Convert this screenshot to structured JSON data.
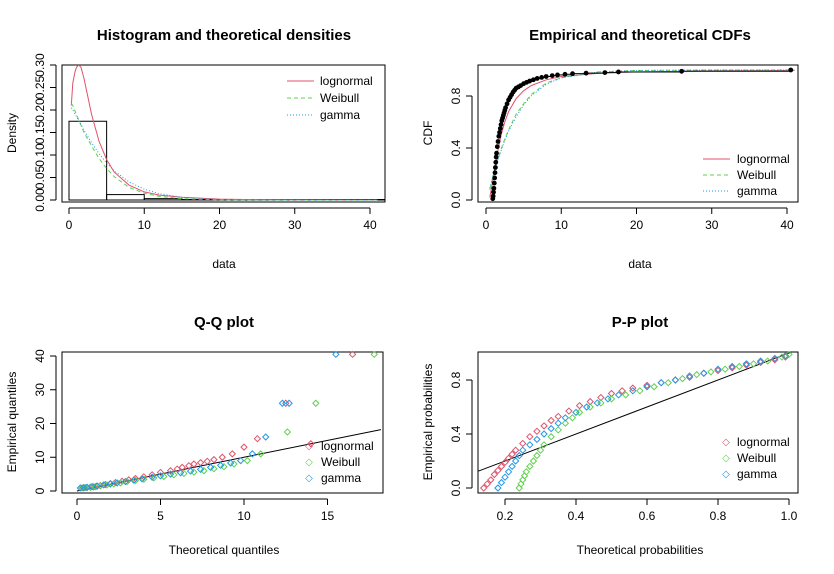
{
  "colors": {
    "lognormal": "#DF536B",
    "weibull": "#61D04F",
    "gamma": "#2297E6",
    "axis": "#000000"
  },
  "chart_data": [
    {
      "id": "density",
      "type": "line",
      "title": "Histogram and theoretical densities",
      "xlabel": "data",
      "ylabel": "Density",
      "xlim": [
        0,
        42
      ],
      "ylim": [
        0,
        0.32
      ],
      "xticks": [
        0,
        10,
        20,
        30,
        40
      ],
      "xtick_labels": [
        "0",
        "10",
        "20",
        "30",
        "40"
      ],
      "yticks": [
        0,
        0.05,
        0.1,
        0.15,
        0.2,
        0.25,
        0.3
      ],
      "ytick_labels": [
        "0.00",
        "0.05",
        "0.10",
        "0.15",
        "0.20",
        "0.25",
        "0.30"
      ],
      "histogram": {
        "bins": [
          [
            0,
            5
          ],
          [
            5,
            10
          ],
          [
            10,
            15
          ],
          [
            15,
            20
          ],
          [
            20,
            25
          ],
          [
            25,
            30
          ],
          [
            30,
            35
          ],
          [
            35,
            40
          ],
          [
            40,
            45
          ]
        ],
        "density": [
          0.175,
          0.012,
          0.003,
          0.001,
          0.0,
          0.001,
          0.0,
          0.0,
          0.001
        ]
      },
      "series": [
        {
          "name": "lognormal",
          "style": "solid",
          "x": [
            0.3,
            0.5,
            0.8,
            1.0,
            1.3,
            1.6,
            2.0,
            2.5,
            3.0,
            4.0,
            5.0,
            6.0,
            8.0,
            10.0,
            12.0,
            15.0,
            20.0,
            25.0,
            30.0,
            41.0
          ],
          "y": [
            0.21,
            0.26,
            0.285,
            0.295,
            0.3,
            0.295,
            0.27,
            0.23,
            0.19,
            0.13,
            0.09,
            0.062,
            0.033,
            0.018,
            0.011,
            0.006,
            0.002,
            0.001,
            0.0005,
            0.0
          ]
        },
        {
          "name": "Weibull",
          "style": "dashed",
          "x": [
            0.3,
            0.5,
            1.0,
            1.5,
            2.0,
            3.0,
            4.0,
            5.0,
            6.0,
            8.0,
            10.0,
            12.0,
            15.0,
            20.0,
            30.0,
            41.0
          ],
          "y": [
            0.215,
            0.21,
            0.19,
            0.17,
            0.15,
            0.12,
            0.092,
            0.07,
            0.052,
            0.028,
            0.015,
            0.008,
            0.003,
            0.0005,
            0.0,
            0.0
          ]
        },
        {
          "name": "gamma",
          "style": "dotted",
          "x": [
            0.3,
            0.5,
            1.0,
            1.5,
            2.0,
            3.0,
            4.0,
            5.0,
            6.0,
            8.0,
            10.0,
            12.0,
            15.0,
            20.0,
            30.0,
            41.0
          ],
          "y": [
            0.205,
            0.2,
            0.185,
            0.17,
            0.155,
            0.127,
            0.103,
            0.082,
            0.065,
            0.04,
            0.024,
            0.014,
            0.006,
            0.001,
            0.0,
            0.0
          ]
        }
      ],
      "legend": {
        "position": "top-right",
        "entries": [
          "lognormal",
          "Weibull",
          "gamma"
        ]
      }
    },
    {
      "id": "cdf",
      "type": "line",
      "title": "Empirical and theoretical CDFs",
      "xlabel": "data",
      "ylabel": "CDF",
      "xlim": [
        0,
        41
      ],
      "ylim": [
        0,
        1
      ],
      "xticks": [
        0,
        10,
        20,
        30,
        40
      ],
      "xtick_labels": [
        "0",
        "10",
        "20",
        "30",
        "40"
      ],
      "yticks": [
        0,
        0.4,
        0.8
      ],
      "ytick_labels": [
        "0.0",
        "0.4",
        "0.8"
      ],
      "empirical": {
        "x": [
          0.9,
          0.95,
          1.0,
          1.05,
          1.1,
          1.15,
          1.2,
          1.25,
          1.3,
          1.35,
          1.4,
          1.5,
          1.6,
          1.7,
          1.8,
          1.9,
          2.0,
          2.1,
          2.2,
          2.3,
          2.4,
          2.5,
          2.6,
          2.8,
          3.0,
          3.2,
          3.4,
          3.6,
          3.8,
          4.0,
          4.3,
          4.6,
          5.0,
          5.4,
          5.8,
          6.3,
          6.8,
          7.4,
          8.0,
          8.8,
          9.5,
          10.5,
          11.5,
          13.3,
          15.8,
          17.6,
          26.0,
          40.5
        ],
        "y": [
          0.01,
          0.03,
          0.06,
          0.09,
          0.13,
          0.17,
          0.21,
          0.25,
          0.29,
          0.33,
          0.36,
          0.41,
          0.45,
          0.49,
          0.52,
          0.55,
          0.58,
          0.61,
          0.63,
          0.65,
          0.67,
          0.69,
          0.71,
          0.74,
          0.77,
          0.79,
          0.81,
          0.83,
          0.845,
          0.86,
          0.87,
          0.88,
          0.895,
          0.905,
          0.915,
          0.925,
          0.935,
          0.943,
          0.95,
          0.957,
          0.962,
          0.967,
          0.972,
          0.976,
          0.98,
          0.985,
          0.99,
          1.0
        ]
      },
      "series": [
        {
          "name": "lognormal",
          "style": "solid",
          "x": [
            0.5,
            1.0,
            1.5,
            2.0,
            2.5,
            3.0,
            4.0,
            5.0,
            6.0,
            8.0,
            10.0,
            15.0,
            20.0,
            30.0,
            41.0
          ],
          "y": [
            0.02,
            0.18,
            0.36,
            0.5,
            0.6,
            0.68,
            0.78,
            0.84,
            0.88,
            0.925,
            0.95,
            0.975,
            0.985,
            0.993,
            0.996
          ]
        },
        {
          "name": "Weibull",
          "style": "dashed",
          "x": [
            0.5,
            1.0,
            1.5,
            2.0,
            2.5,
            3.0,
            4.0,
            5.0,
            6.0,
            8.0,
            10.0,
            15.0,
            20.0,
            30.0,
            41.0
          ],
          "y": [
            0.08,
            0.2,
            0.3,
            0.39,
            0.47,
            0.54,
            0.66,
            0.74,
            0.81,
            0.9,
            0.94,
            0.985,
            0.996,
            1.0,
            1.0
          ]
        },
        {
          "name": "gamma",
          "style": "dotted",
          "x": [
            0.5,
            1.0,
            1.5,
            2.0,
            2.5,
            3.0,
            4.0,
            5.0,
            6.0,
            8.0,
            10.0,
            15.0,
            20.0,
            30.0,
            41.0
          ],
          "y": [
            0.09,
            0.2,
            0.3,
            0.38,
            0.46,
            0.53,
            0.64,
            0.73,
            0.8,
            0.89,
            0.94,
            0.985,
            0.997,
            1.0,
            1.0
          ]
        }
      ],
      "legend": {
        "position": "bottom-right",
        "entries": [
          "lognormal",
          "Weibull",
          "gamma"
        ]
      }
    },
    {
      "id": "qq",
      "type": "scatter",
      "title": "Q-Q plot",
      "xlabel": "Theoretical quantiles",
      "ylabel": "Empirical quantiles",
      "xlim": [
        -0.5,
        18.2
      ],
      "ylim": [
        -0.5,
        41.5
      ],
      "xticks": [
        0,
        5,
        10,
        15
      ],
      "xtick_labels": [
        "0",
        "5",
        "10",
        "15"
      ],
      "yticks": [
        0,
        10,
        20,
        30,
        40
      ],
      "ytick_labels": [
        "0",
        "10",
        "20",
        "30",
        "40"
      ],
      "reference_line": [
        [
          0,
          0
        ],
        [
          18.2,
          18.2
        ]
      ],
      "series": [
        {
          "name": "lognormal",
          "x": [
            0.4,
            0.6,
            0.8,
            1.0,
            1.2,
            1.4,
            1.7,
            2.0,
            2.3,
            2.7,
            3.1,
            3.5,
            4.0,
            4.5,
            5.0,
            5.6,
            6.0,
            6.3,
            6.7,
            7.0,
            7.4,
            7.8,
            8.2,
            8.7,
            9.3,
            10.0,
            10.8,
            12.5,
            14.0,
            16.5
          ],
          "y": [
            0.9,
            1.0,
            1.1,
            1.2,
            1.4,
            1.6,
            1.9,
            2.2,
            2.5,
            2.9,
            3.3,
            3.7,
            4.2,
            4.8,
            5.5,
            6.0,
            6.5,
            7.0,
            7.5,
            8.0,
            8.4,
            8.8,
            9.3,
            10.0,
            11.0,
            13.0,
            15.5,
            26.0,
            14.0,
            40.5
          ]
        },
        {
          "name": "Weibull",
          "x": [
            0.3,
            0.5,
            0.8,
            1.1,
            1.4,
            1.8,
            2.2,
            2.6,
            3.0,
            3.5,
            4.0,
            4.6,
            5.2,
            5.8,
            6.4,
            7.0,
            7.6,
            8.2,
            8.8,
            9.4,
            10.2,
            11.0,
            12.6,
            14.3,
            17.8
          ],
          "y": [
            0.9,
            1.0,
            1.1,
            1.3,
            1.5,
            1.8,
            2.1,
            2.4,
            2.8,
            3.1,
            3.5,
            3.9,
            4.3,
            4.8,
            5.2,
            5.6,
            6.0,
            6.6,
            7.2,
            8.0,
            9.0,
            11.0,
            17.5,
            26.0,
            40.5
          ]
        },
        {
          "name": "gamma",
          "x": [
            0.2,
            0.4,
            0.6,
            0.9,
            1.2,
            1.6,
            2.0,
            2.4,
            2.9,
            3.4,
            3.9,
            4.5,
            5.0,
            5.6,
            6.2,
            6.8,
            7.4,
            8.0,
            8.6,
            9.2,
            9.8,
            10.5,
            11.3,
            12.3,
            12.7,
            15.5
          ],
          "y": [
            0.9,
            1.0,
            1.1,
            1.3,
            1.5,
            1.8,
            2.1,
            2.4,
            2.8,
            3.2,
            3.6,
            4.1,
            4.5,
            5.0,
            5.4,
            5.9,
            6.4,
            7.0,
            7.6,
            8.3,
            9.0,
            11.0,
            16.0,
            26.0,
            26.0,
            40.5
          ]
        }
      ],
      "legend": {
        "position": "bottom-right",
        "entries": [
          "lognormal",
          "Weibull",
          "gamma"
        ]
      }
    },
    {
      "id": "pp",
      "type": "scatter",
      "title": "P-P plot",
      "xlabel": "Theoretical probabilities",
      "ylabel": "Empirical probabilities",
      "xlim": [
        0.1,
        1.02
      ],
      "ylim": [
        -0.04,
        1.04
      ],
      "xticks": [
        0.2,
        0.4,
        0.6,
        0.8,
        1.0
      ],
      "xtick_labels": [
        "0.2",
        "0.4",
        "0.6",
        "0.8",
        "1.0"
      ],
      "yticks": [
        0,
        0.4,
        0.8
      ],
      "ytick_labels": [
        "0.0",
        "0.4",
        "0.8"
      ],
      "reference_line": [
        [
          0,
          0
        ],
        [
          1.02,
          1.02
        ]
      ],
      "series": [
        {
          "name": "lognormal",
          "x": [
            0.14,
            0.15,
            0.16,
            0.17,
            0.18,
            0.19,
            0.2,
            0.21,
            0.22,
            0.23,
            0.25,
            0.27,
            0.29,
            0.31,
            0.33,
            0.35,
            0.38,
            0.41,
            0.44,
            0.47,
            0.5,
            0.53,
            0.56,
            0.6,
            0.64,
            0.68,
            0.72,
            0.76,
            0.8,
            0.84,
            0.88,
            0.92,
            0.96,
            0.99
          ],
          "y": [
            0.0,
            0.03,
            0.06,
            0.1,
            0.13,
            0.16,
            0.19,
            0.22,
            0.25,
            0.28,
            0.33,
            0.38,
            0.42,
            0.46,
            0.5,
            0.53,
            0.57,
            0.61,
            0.64,
            0.67,
            0.7,
            0.72,
            0.74,
            0.76,
            0.78,
            0.8,
            0.82,
            0.85,
            0.87,
            0.89,
            0.91,
            0.93,
            0.95,
            0.97
          ]
        },
        {
          "name": "Weibull",
          "x": [
            0.24,
            0.245,
            0.25,
            0.255,
            0.26,
            0.27,
            0.28,
            0.29,
            0.3,
            0.31,
            0.33,
            0.35,
            0.37,
            0.39,
            0.41,
            0.44,
            0.47,
            0.5,
            0.54,
            0.58,
            0.62,
            0.66,
            0.7,
            0.74,
            0.78,
            0.82,
            0.86,
            0.9,
            0.94,
            0.98,
            1.0
          ],
          "y": [
            0.0,
            0.03,
            0.06,
            0.09,
            0.12,
            0.16,
            0.2,
            0.24,
            0.28,
            0.32,
            0.38,
            0.43,
            0.48,
            0.52,
            0.56,
            0.6,
            0.63,
            0.66,
            0.69,
            0.72,
            0.75,
            0.78,
            0.81,
            0.84,
            0.86,
            0.88,
            0.9,
            0.92,
            0.94,
            0.97,
            0.99
          ]
        },
        {
          "name": "gamma",
          "x": [
            0.18,
            0.19,
            0.2,
            0.21,
            0.22,
            0.23,
            0.24,
            0.25,
            0.27,
            0.29,
            0.31,
            0.33,
            0.35,
            0.37,
            0.4,
            0.43,
            0.46,
            0.49,
            0.52,
            0.56,
            0.6,
            0.64,
            0.68,
            0.72,
            0.76,
            0.8,
            0.84,
            0.88,
            0.92,
            0.96,
            0.99
          ],
          "y": [
            0.0,
            0.04,
            0.08,
            0.12,
            0.16,
            0.2,
            0.24,
            0.28,
            0.32,
            0.36,
            0.4,
            0.44,
            0.48,
            0.52,
            0.56,
            0.6,
            0.63,
            0.66,
            0.69,
            0.72,
            0.75,
            0.78,
            0.8,
            0.83,
            0.85,
            0.88,
            0.9,
            0.92,
            0.94,
            0.96,
            0.98
          ]
        }
      ],
      "legend": {
        "position": "bottom-right",
        "entries": [
          "lognormal",
          "Weibull",
          "gamma"
        ]
      }
    }
  ]
}
